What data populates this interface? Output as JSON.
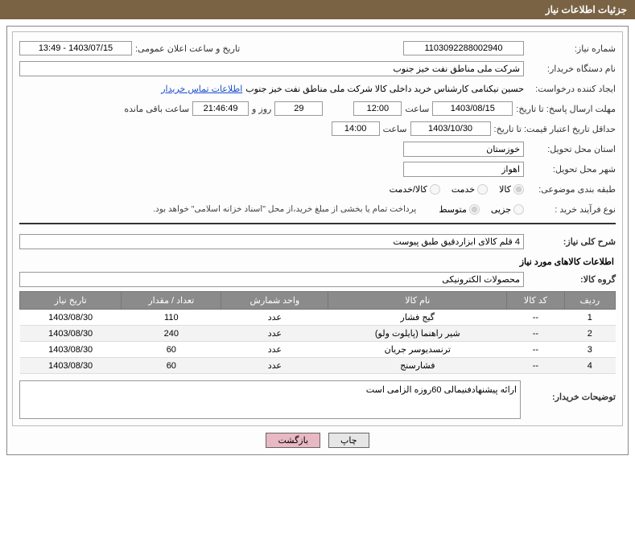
{
  "header_title": "جزئیات اطلاعات نیاز",
  "labels": {
    "need_number": "شماره نیاز:",
    "announce_date": "تاریخ و ساعت اعلان عمومی:",
    "buyer_org": "نام دستگاه خریدار:",
    "requester": "ایجاد کننده درخواست:",
    "contact_link": "اطلاعات تماس خریدار",
    "deadline": "مهلت ارسال پاسخ: تا تاریخ:",
    "time": "ساعت",
    "days_and": "روز و",
    "remaining": "ساعت باقی مانده",
    "price_validity": "حداقل تاریخ اعتبار قیمت: تا تاریخ:",
    "delivery_province": "استان محل تحویل:",
    "delivery_city": "شهر محل تحویل:",
    "topic_class": "طبقه بندی موضوعی:",
    "purchase_type": "نوع فرآیند خرید :",
    "payment_note": "پرداخت تمام یا بخشی از مبلغ خرید،از محل \"اسناد خزانه اسلامی\" خواهد بود.",
    "overall_desc": "شرح کلی نیاز:",
    "items_title": "اطلاعات کالاهای مورد نیاز",
    "goods_group": "گروه کالا:",
    "buyer_notes": "توضیحات خریدار:"
  },
  "values": {
    "need_number": "1103092288002940",
    "announce_date": "1403/07/15 - 13:49",
    "buyer_org": "شرکت ملی مناطق نفت خیز جنوب",
    "requester": "حسین  نیکنامی  کارشناس خرید داخلی کالا شرکت ملی مناطق نفت خیز جنوب",
    "deadline_date": "1403/08/15",
    "deadline_time": "12:00",
    "remaining_days": "29",
    "remaining_time": "21:46:49",
    "validity_date": "1403/10/30",
    "validity_time": "14:00",
    "province": "خوزستان",
    "city": "اهواز",
    "overall_desc": "4 قلم کالای ابزاردقیق طبق پیوست",
    "goods_group": "محصولات الکترونیکی",
    "buyer_notes": "ارائه پیشنهادفنیمالی 60روزه الزامی است"
  },
  "radios_topic": [
    {
      "label": "کالا",
      "checked": true
    },
    {
      "label": "خدمت",
      "checked": false
    },
    {
      "label": "کالا/خدمت",
      "checked": false
    }
  ],
  "radios_purchase": [
    {
      "label": "جزیی",
      "checked": false
    },
    {
      "label": "متوسط",
      "checked": true
    }
  ],
  "table": {
    "headers": [
      "ردیف",
      "کد کالا",
      "نام کالا",
      "واحد شمارش",
      "تعداد / مقدار",
      "تاریخ نیاز"
    ],
    "rows": [
      {
        "idx": "1",
        "code": "--",
        "name": "گیج فشار",
        "unit": "عدد",
        "qty": "110",
        "date": "1403/08/30"
      },
      {
        "idx": "2",
        "code": "--",
        "name": "شیر راهنما (پایلوت ولو)",
        "unit": "عدد",
        "qty": "240",
        "date": "1403/08/30"
      },
      {
        "idx": "3",
        "code": "--",
        "name": "ترنسدیوسر جریان",
        "unit": "عدد",
        "qty": "60",
        "date": "1403/08/30"
      },
      {
        "idx": "4",
        "code": "--",
        "name": "فشارسنج",
        "unit": "عدد",
        "qty": "60",
        "date": "1403/08/30"
      }
    ]
  },
  "buttons": {
    "print": "چاپ",
    "back": "بازگشت"
  }
}
